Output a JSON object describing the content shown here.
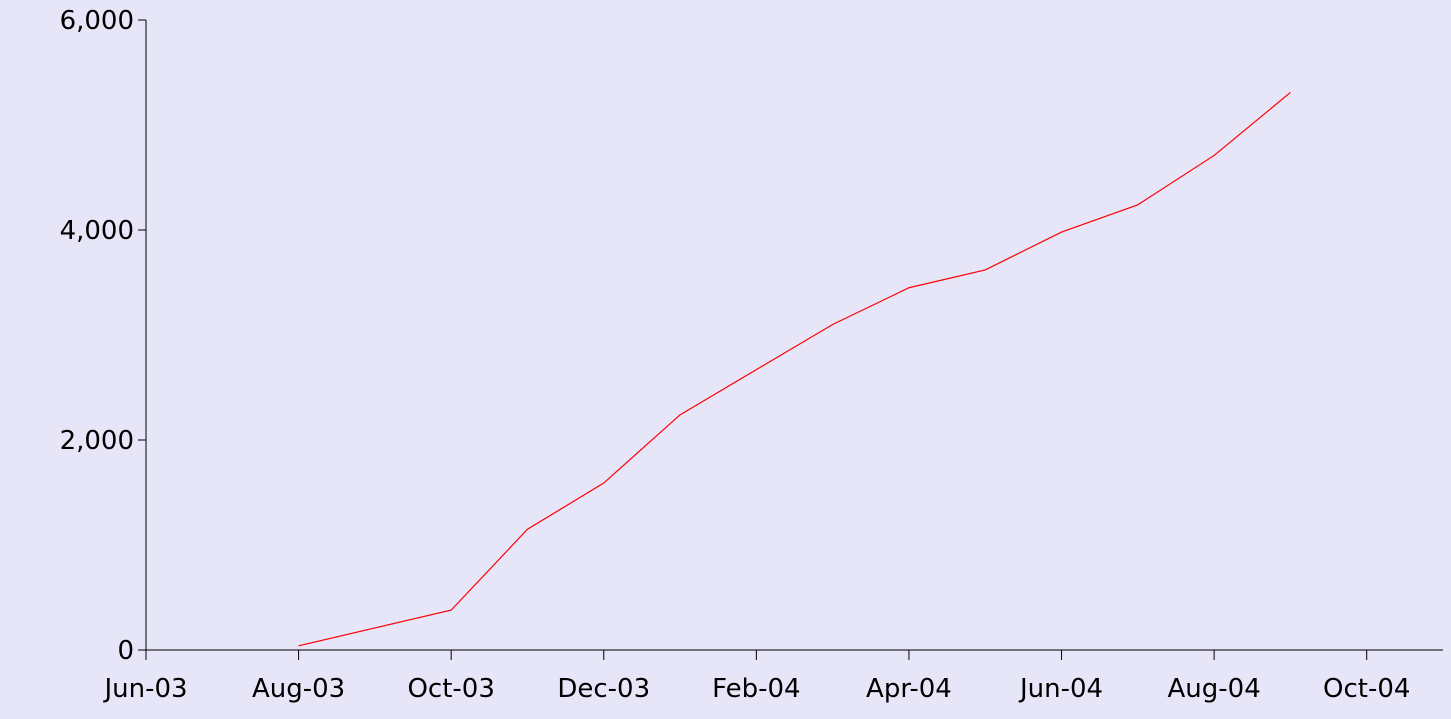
{
  "chart_data": {
    "type": "line",
    "x": [
      "2003-08",
      "2003-09",
      "2003-10",
      "2003-11",
      "2003-12",
      "2004-01",
      "2004-02",
      "2004-03",
      "2004-04",
      "2004-05",
      "2004-06",
      "2004-07",
      "2004-08",
      "2004-09"
    ],
    "series": [
      {
        "color": "#ff0000",
        "values": [
          40,
          210,
          380,
          1150,
          1590,
          2240,
          2670,
          3100,
          3450,
          3620,
          3980,
          4240,
          4710,
          5310
        ]
      }
    ],
    "xlim": [
      "2003-06",
      "2004-11"
    ],
    "xticks": [
      {
        "value": "2003-06",
        "label": "Jun-03"
      },
      {
        "value": "2003-08",
        "label": "Aug-03"
      },
      {
        "value": "2003-10",
        "label": "Oct-03"
      },
      {
        "value": "2003-12",
        "label": "Dec-03"
      },
      {
        "value": "2004-02",
        "label": "Feb-04"
      },
      {
        "value": "2004-04",
        "label": "Apr-04"
      },
      {
        "value": "2004-06",
        "label": "Jun-04"
      },
      {
        "value": "2004-08",
        "label": "Aug-04"
      },
      {
        "value": "2004-10",
        "label": "Oct-04"
      }
    ],
    "ylim": [
      0,
      6000
    ],
    "yticks": [
      0,
      {
        "value": 2000,
        "label": "2,000"
      },
      {
        "value": 4000,
        "label": "4,000"
      },
      {
        "value": 6000,
        "label": "6,000"
      }
    ]
  }
}
